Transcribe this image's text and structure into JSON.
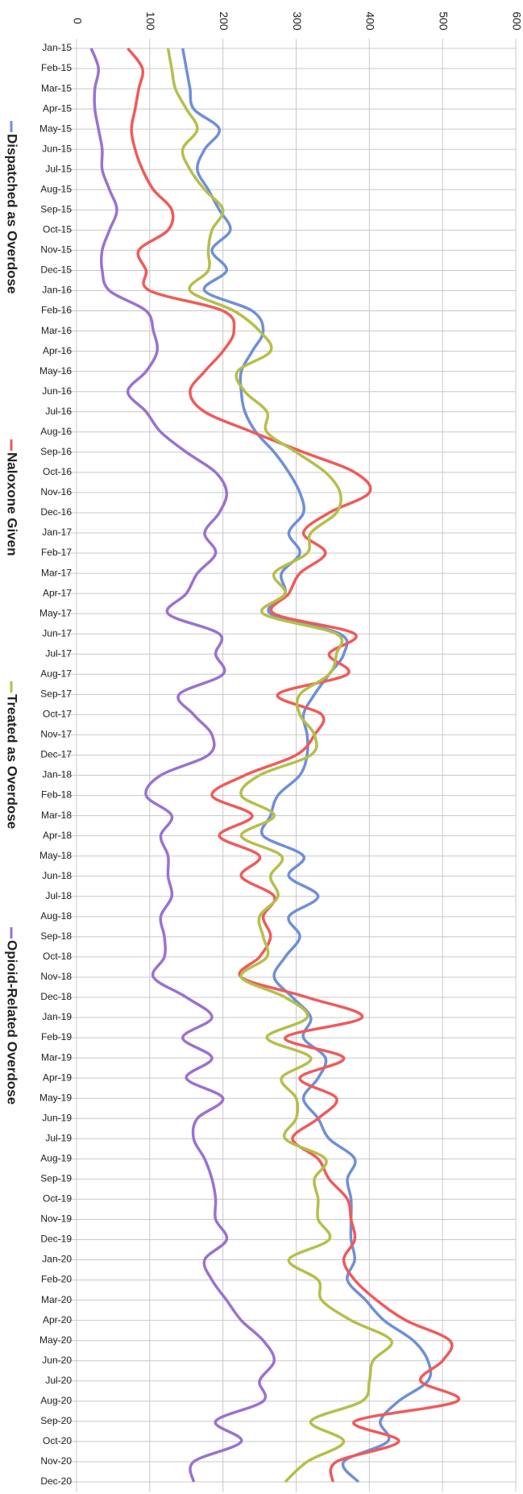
{
  "chart_data": {
    "type": "line",
    "categories": [
      "Jan-15",
      "Feb-15",
      "Mar-15",
      "Apr-15",
      "May-15",
      "Jun-15",
      "Jul-15",
      "Aug-15",
      "Sep-15",
      "Oct-15",
      "Nov-15",
      "Dec-15",
      "Jan-16",
      "Feb-16",
      "Mar-16",
      "Apr-16",
      "May-16",
      "Jun-16",
      "Jul-16",
      "Aug-16",
      "Sep-16",
      "Oct-16",
      "Nov-16",
      "Dec-16",
      "Jan-17",
      "Feb-17",
      "Mar-17",
      "Apr-17",
      "May-17",
      "Jun-17",
      "Jul-17",
      "Aug-17",
      "Sep-17",
      "Oct-17",
      "Nov-17",
      "Dec-17",
      "Jan-18",
      "Feb-18",
      "Mar-18",
      "Apr-18",
      "May-18",
      "Jun-18",
      "Jul-18",
      "Aug-18",
      "Sep-18",
      "Oct-18",
      "Nov-18",
      "Dec-18",
      "Jan-19",
      "Feb-19",
      "Mar-19",
      "Apr-19",
      "May-19",
      "Jun-19",
      "Jul-19",
      "Aug-19",
      "Sep-19",
      "Oct-19",
      "Nov-19",
      "Dec-19",
      "Jan-20",
      "Feb-20",
      "Mar-20",
      "Apr-20",
      "May-20",
      "Jun-20",
      "Jul-20",
      "Aug-20",
      "Sep-20",
      "Oct-20",
      "Nov-20",
      "Dec-20"
    ],
    "series": [
      {
        "name": "Dispatched as Overdose",
        "color": "#6f8fd8",
        "values": [
          145,
          150,
          155,
          160,
          195,
          175,
          165,
          180,
          195,
          210,
          185,
          205,
          175,
          240,
          255,
          240,
          225,
          225,
          230,
          245,
          270,
          290,
          305,
          310,
          290,
          305,
          280,
          285,
          265,
          360,
          365,
          345,
          325,
          310,
          315,
          315,
          305,
          275,
          265,
          255,
          310,
          290,
          330,
          290,
          305,
          285,
          270,
          295,
          320,
          310,
          340,
          330,
          310,
          330,
          345,
          380,
          370,
          375,
          375,
          375,
          380,
          370,
          395,
          420,
          460,
          480,
          480,
          440,
          415,
          425,
          365,
          385
        ]
      },
      {
        "name": "Naloxone Given",
        "color": "#f05a5a",
        "values": [
          70,
          90,
          85,
          80,
          75,
          80,
          90,
          105,
          130,
          125,
          85,
          95,
          100,
          200,
          215,
          200,
          175,
          155,
          175,
          240,
          310,
          380,
          400,
          345,
          310,
          340,
          305,
          290,
          270,
          380,
          345,
          370,
          275,
          335,
          325,
          300,
          230,
          185,
          240,
          195,
          250,
          225,
          270,
          255,
          265,
          250,
          225,
          315,
          390,
          285,
          365,
          305,
          355,
          330,
          295,
          330,
          345,
          370,
          375,
          380,
          365,
          380,
          410,
          450,
          510,
          500,
          470,
          520,
          380,
          440,
          355,
          350
        ]
      },
      {
        "name": "Treated as Overdose",
        "color": "#b5bf4a",
        "values": [
          125,
          130,
          135,
          150,
          165,
          145,
          155,
          175,
          200,
          185,
          180,
          180,
          155,
          215,
          250,
          265,
          220,
          230,
          260,
          260,
          300,
          340,
          360,
          355,
          320,
          315,
          270,
          285,
          255,
          355,
          355,
          345,
          305,
          305,
          325,
          320,
          250,
          225,
          270,
          225,
          280,
          265,
          275,
          250,
          255,
          260,
          225,
          285,
          315,
          260,
          320,
          280,
          300,
          300,
          285,
          340,
          325,
          330,
          330,
          345,
          290,
          330,
          335,
          375,
          430,
          405,
          400,
          390,
          320,
          365,
          315,
          285
        ]
      },
      {
        "name": "Opioid-Related Overdose",
        "color": "#9a72d0",
        "values": [
          20,
          30,
          25,
          25,
          30,
          35,
          35,
          45,
          55,
          45,
          35,
          35,
          45,
          95,
          105,
          110,
          95,
          70,
          95,
          115,
          150,
          190,
          205,
          195,
          175,
          190,
          165,
          150,
          125,
          195,
          190,
          200,
          140,
          160,
          185,
          180,
          115,
          95,
          130,
          115,
          125,
          125,
          130,
          115,
          120,
          120,
          105,
          150,
          185,
          145,
          185,
          150,
          200,
          165,
          160,
          175,
          185,
          190,
          190,
          205,
          175,
          185,
          205,
          225,
          255,
          270,
          250,
          255,
          190,
          225,
          160,
          160
        ]
      }
    ],
    "ylim": [
      0,
      600
    ],
    "yticks": [
      0,
      100,
      200,
      300,
      400,
      500,
      600
    ],
    "grid": true
  }
}
